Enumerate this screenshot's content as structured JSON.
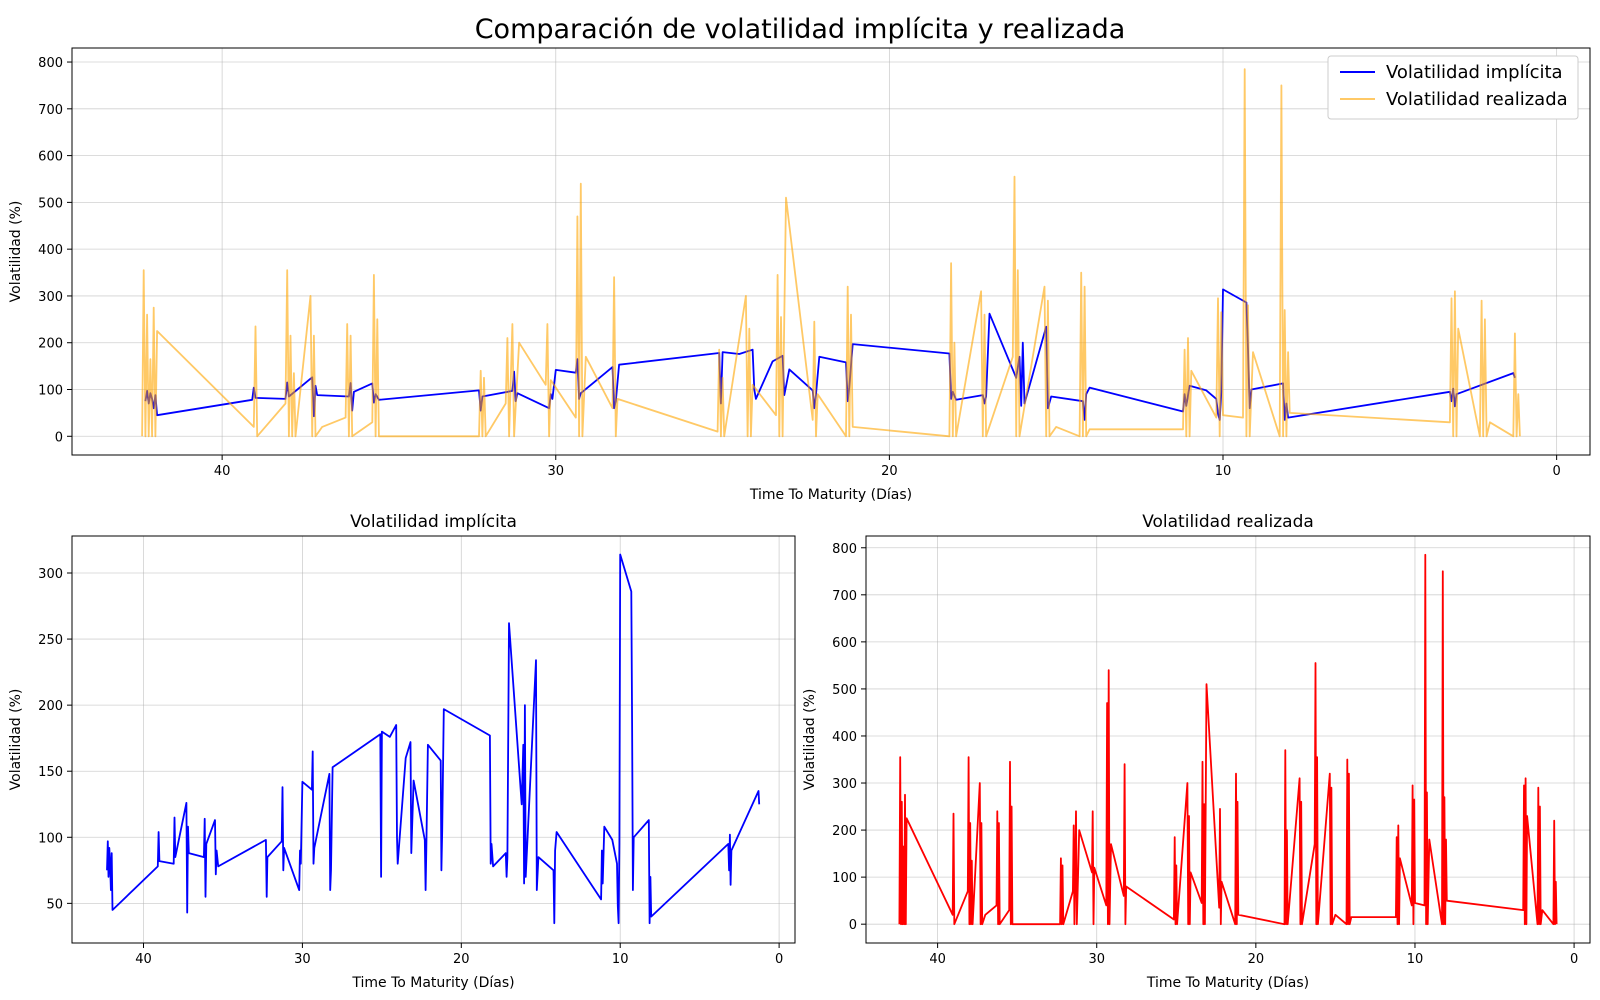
{
  "figure_title": "Comparación de volatilidad implícita y realizada",
  "colors": {
    "implied": "#0000ff",
    "realized_overlay": "#ffa500",
    "realized_single": "#ff0000",
    "grid": "#b0b0b0"
  },
  "chart_data": [
    {
      "id": "top",
      "type": "line",
      "title": "",
      "xlabel": "Time To Maturity (Días)",
      "ylabel": "Volatilidad (%)",
      "xlim": [
        44.5,
        -1
      ],
      "ylim": [
        -40,
        830
      ],
      "xticks": [
        40,
        30,
        20,
        10,
        0
      ],
      "yticks": [
        0,
        100,
        200,
        300,
        400,
        500,
        600,
        700,
        800
      ],
      "grid": true,
      "legend": "top-right",
      "series": [
        {
          "name": "Volatilidad implícita",
          "ref": "implied",
          "color": "#0000ff",
          "alpha": 1.0
        },
        {
          "name": "Volatilidad realizada",
          "ref": "realized",
          "color": "#ffa500",
          "alpha": 0.6
        }
      ]
    },
    {
      "id": "bl",
      "type": "line",
      "title": "Volatilidad implícita",
      "xlabel": "Time To Maturity (Días)",
      "ylabel": "Volatilidad (%)",
      "xlim": [
        44.5,
        -1
      ],
      "ylim": [
        20,
        328
      ],
      "xticks": [
        40,
        30,
        20,
        10,
        0
      ],
      "yticks": [
        50,
        100,
        150,
        200,
        250,
        300
      ],
      "grid": true,
      "series": [
        {
          "ref": "implied",
          "color": "#0000ff",
          "alpha": 1.0
        }
      ]
    },
    {
      "id": "br",
      "type": "line",
      "title": "Volatilidad realizada",
      "xlabel": "Time To Maturity (Días)",
      "ylabel": "Volatilidad (%)",
      "xlim": [
        44.5,
        -1
      ],
      "ylim": [
        -40,
        825
      ],
      "xticks": [
        40,
        30,
        20,
        10,
        0
      ],
      "yticks": [
        0,
        100,
        200,
        300,
        400,
        500,
        600,
        700,
        800
      ],
      "grid": true,
      "series": [
        {
          "ref": "realized",
          "color": "#ff0000",
          "alpha": 1.0
        }
      ]
    }
  ],
  "series_data": {
    "implied": [
      [
        42.3,
        75
      ],
      [
        42.25,
        97
      ],
      [
        42.2,
        70
      ],
      [
        42.15,
        92
      ],
      [
        42.1,
        80
      ],
      [
        42.05,
        60
      ],
      [
        42.0,
        88
      ],
      [
        41.95,
        45
      ],
      [
        39.1,
        78
      ],
      [
        39.05,
        104
      ],
      [
        39.0,
        82
      ],
      [
        38.1,
        80
      ],
      [
        38.05,
        115
      ],
      [
        38.0,
        85
      ],
      [
        37.3,
        126
      ],
      [
        37.25,
        43
      ],
      [
        37.2,
        108
      ],
      [
        37.15,
        88
      ],
      [
        36.2,
        85
      ],
      [
        36.15,
        114
      ],
      [
        36.1,
        55
      ],
      [
        36.05,
        95
      ],
      [
        35.5,
        113
      ],
      [
        35.45,
        72
      ],
      [
        35.4,
        90
      ],
      [
        35.3,
        78
      ],
      [
        32.3,
        98
      ],
      [
        32.25,
        55
      ],
      [
        32.2,
        85
      ],
      [
        31.3,
        97
      ],
      [
        31.25,
        138
      ],
      [
        31.2,
        75
      ],
      [
        31.15,
        92
      ],
      [
        30.2,
        60
      ],
      [
        30.15,
        90
      ],
      [
        30.1,
        80
      ],
      [
        30.0,
        142
      ],
      [
        29.4,
        136
      ],
      [
        29.35,
        165
      ],
      [
        29.3,
        80
      ],
      [
        29.25,
        92
      ],
      [
        28.3,
        148
      ],
      [
        28.25,
        60
      ],
      [
        28.2,
        75
      ],
      [
        28.1,
        153
      ],
      [
        25.1,
        178
      ],
      [
        25.05,
        70
      ],
      [
        25.0,
        180
      ],
      [
        24.5,
        176
      ],
      [
        24.1,
        185
      ],
      [
        24.05,
        100
      ],
      [
        24.0,
        80
      ],
      [
        23.5,
        160
      ],
      [
        23.2,
        172
      ],
      [
        23.15,
        88
      ],
      [
        23.0,
        143
      ],
      [
        22.3,
        98
      ],
      [
        22.25,
        60
      ],
      [
        22.2,
        90
      ],
      [
        22.1,
        170
      ],
      [
        21.3,
        158
      ],
      [
        21.25,
        75
      ],
      [
        21.2,
        105
      ],
      [
        21.1,
        197
      ],
      [
        18.2,
        177
      ],
      [
        18.15,
        80
      ],
      [
        18.1,
        95
      ],
      [
        18.0,
        78
      ],
      [
        17.2,
        88
      ],
      [
        17.15,
        70
      ],
      [
        17.1,
        85
      ],
      [
        17.0,
        262
      ],
      [
        16.2,
        125
      ],
      [
        16.1,
        170
      ],
      [
        16.05,
        65
      ],
      [
        16.0,
        200
      ],
      [
        15.95,
        70
      ],
      [
        15.3,
        234
      ],
      [
        15.25,
        60
      ],
      [
        15.15,
        85
      ],
      [
        14.2,
        75
      ],
      [
        14.15,
        35
      ],
      [
        14.1,
        90
      ],
      [
        14.0,
        104
      ],
      [
        11.2,
        53
      ],
      [
        11.15,
        90
      ],
      [
        11.1,
        65
      ],
      [
        11.0,
        108
      ],
      [
        10.5,
        98
      ],
      [
        10.2,
        80
      ],
      [
        10.15,
        48
      ],
      [
        10.1,
        35
      ],
      [
        10.05,
        95
      ],
      [
        10.0,
        314
      ],
      [
        9.3,
        286
      ],
      [
        9.25,
        186
      ],
      [
        9.2,
        60
      ],
      [
        9.15,
        100
      ],
      [
        8.2,
        113
      ],
      [
        8.15,
        35
      ],
      [
        8.1,
        70
      ],
      [
        8.05,
        40
      ],
      [
        3.2,
        95
      ],
      [
        3.15,
        75
      ],
      [
        3.1,
        102
      ],
      [
        3.05,
        64
      ],
      [
        3.0,
        90
      ],
      [
        1.3,
        135
      ],
      [
        1.25,
        125
      ]
    ],
    "realized": [
      [
        42.4,
        0
      ],
      [
        42.35,
        355
      ],
      [
        42.3,
        0
      ],
      [
        42.25,
        260
      ],
      [
        42.2,
        0
      ],
      [
        42.15,
        165
      ],
      [
        42.1,
        0
      ],
      [
        42.05,
        275
      ],
      [
        42.0,
        0
      ],
      [
        41.95,
        225
      ],
      [
        39.05,
        20
      ],
      [
        39.0,
        235
      ],
      [
        38.95,
        0
      ],
      [
        38.1,
        70
      ],
      [
        38.05,
        355
      ],
      [
        38.0,
        0
      ],
      [
        37.95,
        215
      ],
      [
        37.9,
        0
      ],
      [
        37.85,
        135
      ],
      [
        37.8,
        0
      ],
      [
        37.35,
        300
      ],
      [
        37.3,
        0
      ],
      [
        37.25,
        215
      ],
      [
        37.2,
        0
      ],
      [
        37.0,
        20
      ],
      [
        36.3,
        40
      ],
      [
        36.25,
        240
      ],
      [
        36.2,
        0
      ],
      [
        36.15,
        215
      ],
      [
        36.1,
        0
      ],
      [
        35.5,
        30
      ],
      [
        35.45,
        345
      ],
      [
        35.4,
        0
      ],
      [
        35.35,
        250
      ],
      [
        35.3,
        0
      ],
      [
        32.3,
        0
      ],
      [
        32.25,
        140
      ],
      [
        32.2,
        0
      ],
      [
        32.15,
        125
      ],
      [
        32.1,
        0
      ],
      [
        31.5,
        70
      ],
      [
        31.45,
        210
      ],
      [
        31.4,
        0
      ],
      [
        31.3,
        240
      ],
      [
        31.25,
        0
      ],
      [
        31.1,
        200
      ],
      [
        30.3,
        110
      ],
      [
        30.25,
        240
      ],
      [
        30.2,
        0
      ],
      [
        30.15,
        120
      ],
      [
        29.4,
        40
      ],
      [
        29.35,
        470
      ],
      [
        29.3,
        0
      ],
      [
        29.25,
        540
      ],
      [
        29.2,
        0
      ],
      [
        29.1,
        170
      ],
      [
        28.3,
        60
      ],
      [
        28.25,
        340
      ],
      [
        28.2,
        0
      ],
      [
        28.15,
        80
      ],
      [
        25.15,
        10
      ],
      [
        25.1,
        185
      ],
      [
        25.05,
        0
      ],
      [
        25.0,
        125
      ],
      [
        24.95,
        0
      ],
      [
        24.3,
        300
      ],
      [
        24.25,
        0
      ],
      [
        24.2,
        230
      ],
      [
        24.15,
        0
      ],
      [
        24.1,
        110
      ],
      [
        23.4,
        45
      ],
      [
        23.35,
        345
      ],
      [
        23.3,
        0
      ],
      [
        23.25,
        255
      ],
      [
        23.2,
        0
      ],
      [
        23.1,
        510
      ],
      [
        22.3,
        35
      ],
      [
        22.25,
        245
      ],
      [
        22.2,
        0
      ],
      [
        22.15,
        90
      ],
      [
        21.3,
        0
      ],
      [
        21.25,
        320
      ],
      [
        21.2,
        0
      ],
      [
        21.15,
        260
      ],
      [
        21.1,
        20
      ],
      [
        18.2,
        0
      ],
      [
        18.15,
        370
      ],
      [
        18.1,
        0
      ],
      [
        18.05,
        200
      ],
      [
        18.0,
        0
      ],
      [
        17.25,
        310
      ],
      [
        17.2,
        0
      ],
      [
        17.15,
        260
      ],
      [
        17.1,
        0
      ],
      [
        16.3,
        170
      ],
      [
        16.25,
        555
      ],
      [
        16.2,
        0
      ],
      [
        16.15,
        355
      ],
      [
        16.1,
        0
      ],
      [
        15.35,
        320
      ],
      [
        15.3,
        0
      ],
      [
        15.25,
        290
      ],
      [
        15.2,
        0
      ],
      [
        15.0,
        20
      ],
      [
        14.3,
        0
      ],
      [
        14.25,
        350
      ],
      [
        14.2,
        0
      ],
      [
        14.15,
        320
      ],
      [
        14.1,
        0
      ],
      [
        14.0,
        15
      ],
      [
        11.2,
        15
      ],
      [
        11.15,
        185
      ],
      [
        11.1,
        0
      ],
      [
        11.05,
        210
      ],
      [
        11.0,
        0
      ],
      [
        10.95,
        140
      ],
      [
        10.2,
        40
      ],
      [
        10.15,
        295
      ],
      [
        10.1,
        0
      ],
      [
        10.05,
        265
      ],
      [
        10.0,
        45
      ],
      [
        9.4,
        40
      ],
      [
        9.35,
        785
      ],
      [
        9.3,
        0
      ],
      [
        9.25,
        280
      ],
      [
        9.2,
        0
      ],
      [
        9.1,
        180
      ],
      [
        8.3,
        0
      ],
      [
        8.25,
        750
      ],
      [
        8.2,
        0
      ],
      [
        8.15,
        270
      ],
      [
        8.1,
        0
      ],
      [
        8.05,
        180
      ],
      [
        8.0,
        50
      ],
      [
        3.2,
        30
      ],
      [
        3.15,
        295
      ],
      [
        3.1,
        0
      ],
      [
        3.05,
        310
      ],
      [
        3.0,
        0
      ],
      [
        2.95,
        230
      ],
      [
        2.3,
        0
      ],
      [
        2.25,
        290
      ],
      [
        2.2,
        0
      ],
      [
        2.15,
        250
      ],
      [
        2.1,
        0
      ],
      [
        2.0,
        30
      ],
      [
        1.3,
        0
      ],
      [
        1.25,
        220
      ],
      [
        1.2,
        0
      ],
      [
        1.15,
        90
      ],
      [
        1.1,
        0
      ]
    ]
  }
}
